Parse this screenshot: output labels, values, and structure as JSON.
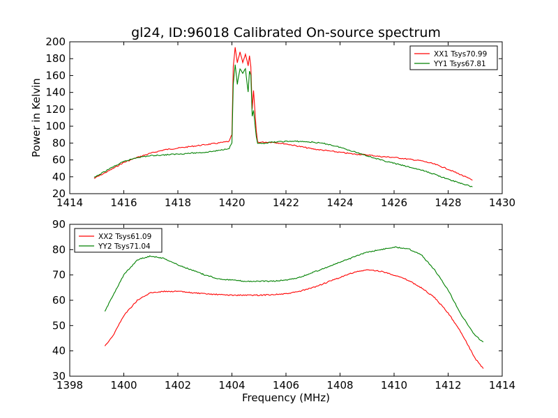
{
  "figure_title": "gl24, ID:96018 Calibrated On-source spectrum",
  "colors": {
    "red": "#ff0000",
    "green": "#008000",
    "axes": "#000000"
  },
  "chart_data": [
    {
      "type": "line",
      "ylabel": "Power in Kelvin",
      "xlabel": "",
      "xlim": [
        1414,
        1430
      ],
      "ylim": [
        20,
        200
      ],
      "xticks": [
        "1414",
        "1416",
        "1418",
        "1420",
        "1422",
        "1424",
        "1426",
        "1428",
        "1430"
      ],
      "yticks": [
        "20",
        "40",
        "60",
        "80",
        "100",
        "120",
        "140",
        "160",
        "180",
        "200"
      ],
      "legend_placement": "top-right",
      "grid": false,
      "series": [
        {
          "name": "XX1 Tsys70.99",
          "color": "red",
          "points": [
            [
              1414.9,
              38
            ],
            [
              1415.5,
              48
            ],
            [
              1416.0,
              57
            ],
            [
              1416.5,
              63
            ],
            [
              1417.0,
              68
            ],
            [
              1417.5,
              72
            ],
            [
              1418.0,
              74
            ],
            [
              1418.5,
              76
            ],
            [
              1419.0,
              78
            ],
            [
              1419.5,
              80
            ],
            [
              1419.9,
              82
            ],
            [
              1420.0,
              90
            ],
            [
              1420.05,
              170
            ],
            [
              1420.12,
              193
            ],
            [
              1420.2,
              175
            ],
            [
              1420.3,
              188
            ],
            [
              1420.4,
              176
            ],
            [
              1420.5,
              185
            ],
            [
              1420.6,
              172
            ],
            [
              1420.65,
              183
            ],
            [
              1420.7,
              170
            ],
            [
              1420.75,
              120
            ],
            [
              1420.8,
              142
            ],
            [
              1420.9,
              95
            ],
            [
              1420.95,
              81
            ],
            [
              1421.5,
              81
            ],
            [
              1422.0,
              79
            ],
            [
              1422.5,
              76
            ],
            [
              1423.0,
              73
            ],
            [
              1423.5,
              71
            ],
            [
              1424.0,
              69
            ],
            [
              1424.5,
              67
            ],
            [
              1425.0,
              66
            ],
            [
              1425.5,
              64
            ],
            [
              1426.0,
              63
            ],
            [
              1426.5,
              61
            ],
            [
              1427.0,
              59
            ],
            [
              1427.5,
              55
            ],
            [
              1428.0,
              49
            ],
            [
              1428.5,
              42
            ],
            [
              1428.9,
              36
            ]
          ]
        },
        {
          "name": "YY1 Tsys67.81",
          "color": "green",
          "points": [
            [
              1414.9,
              39
            ],
            [
              1415.5,
              50
            ],
            [
              1416.0,
              58
            ],
            [
              1416.5,
              63
            ],
            [
              1417.0,
              65
            ],
            [
              1417.5,
              66
            ],
            [
              1418.0,
              67
            ],
            [
              1418.5,
              68
            ],
            [
              1419.0,
              69
            ],
            [
              1419.5,
              71
            ],
            [
              1419.9,
              74
            ],
            [
              1420.0,
              80
            ],
            [
              1420.05,
              150
            ],
            [
              1420.12,
              173
            ],
            [
              1420.2,
              150
            ],
            [
              1420.3,
              168
            ],
            [
              1420.4,
              162
            ],
            [
              1420.5,
              168
            ],
            [
              1420.6,
              140
            ],
            [
              1420.65,
              165
            ],
            [
              1420.7,
              160
            ],
            [
              1420.75,
              112
            ],
            [
              1420.8,
              118
            ],
            [
              1420.9,
              88
            ],
            [
              1420.95,
              79
            ],
            [
              1421.5,
              81
            ],
            [
              1422.0,
              82
            ],
            [
              1422.5,
              82
            ],
            [
              1423.0,
              81
            ],
            [
              1423.5,
              79
            ],
            [
              1424.0,
              75
            ],
            [
              1424.5,
              70
            ],
            [
              1425.0,
              65
            ],
            [
              1425.5,
              60
            ],
            [
              1426.0,
              56
            ],
            [
              1426.5,
              52
            ],
            [
              1427.0,
              48
            ],
            [
              1427.5,
              43
            ],
            [
              1428.0,
              37
            ],
            [
              1428.5,
              32
            ],
            [
              1428.9,
              28
            ]
          ]
        }
      ]
    },
    {
      "type": "line",
      "ylabel": "",
      "xlabel": "Frequency (MHz)",
      "xlim": [
        1398,
        1414
      ],
      "ylim": [
        30,
        90
      ],
      "xticks": [
        "1398",
        "1400",
        "1402",
        "1404",
        "1406",
        "1408",
        "1410",
        "1412",
        "1414"
      ],
      "yticks": [
        "30",
        "40",
        "50",
        "60",
        "70",
        "80",
        "90"
      ],
      "legend_placement": "top-left",
      "grid": false,
      "series": [
        {
          "name": "XX2 Tsys61.09",
          "color": "red",
          "points": [
            [
              1399.3,
              42
            ],
            [
              1399.6,
              46
            ],
            [
              1400.0,
              54
            ],
            [
              1400.5,
              60
            ],
            [
              1401.0,
              63
            ],
            [
              1401.5,
              63.5
            ],
            [
              1402.0,
              63.5
            ],
            [
              1403.0,
              62.5
            ],
            [
              1404.0,
              62
            ],
            [
              1405.0,
              62
            ],
            [
              1406.0,
              62.5
            ],
            [
              1406.5,
              63.5
            ],
            [
              1407.0,
              65
            ],
            [
              1407.5,
              67
            ],
            [
              1408.0,
              69
            ],
            [
              1408.5,
              71
            ],
            [
              1409.0,
              72
            ],
            [
              1409.5,
              71.5
            ],
            [
              1410.0,
              70
            ],
            [
              1410.5,
              68
            ],
            [
              1411.0,
              65
            ],
            [
              1411.5,
              61
            ],
            [
              1412.0,
              55
            ],
            [
              1412.5,
              47
            ],
            [
              1413.0,
              37
            ],
            [
              1413.3,
              33
            ]
          ]
        },
        {
          "name": "YY2 Tsys71.04",
          "color": "green",
          "points": [
            [
              1399.3,
              55.5
            ],
            [
              1399.6,
              62
            ],
            [
              1400.0,
              70
            ],
            [
              1400.5,
              76
            ],
            [
              1401.0,
              77.5
            ],
            [
              1401.5,
              76.5
            ],
            [
              1402.0,
              74
            ],
            [
              1402.5,
              72
            ],
            [
              1403.0,
              70
            ],
            [
              1403.5,
              68.5
            ],
            [
              1404.0,
              68
            ],
            [
              1404.5,
              67.5
            ],
            [
              1405.0,
              67.5
            ],
            [
              1405.5,
              67.5
            ],
            [
              1406.0,
              68
            ],
            [
              1406.5,
              69
            ],
            [
              1407.0,
              71
            ],
            [
              1407.5,
              73
            ],
            [
              1408.0,
              75
            ],
            [
              1408.5,
              77
            ],
            [
              1409.0,
              79
            ],
            [
              1409.5,
              80
            ],
            [
              1410.0,
              81
            ],
            [
              1410.5,
              80.5
            ],
            [
              1411.0,
              78
            ],
            [
              1411.5,
              72
            ],
            [
              1412.0,
              64
            ],
            [
              1412.5,
              54
            ],
            [
              1413.0,
              46
            ],
            [
              1413.3,
              43.5
            ]
          ]
        }
      ]
    }
  ]
}
